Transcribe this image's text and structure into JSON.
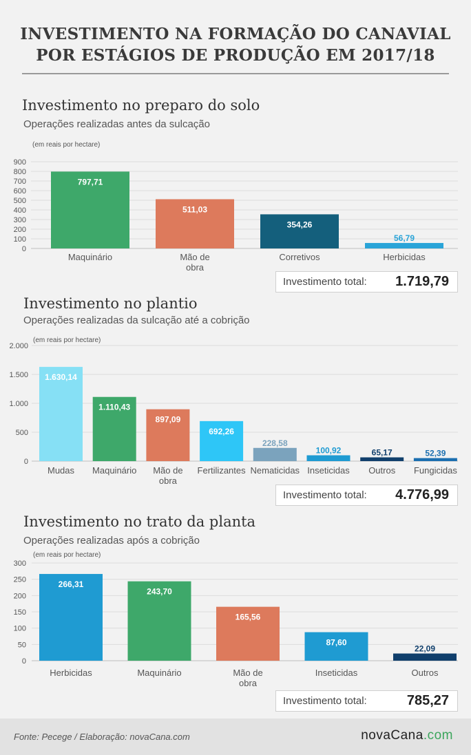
{
  "header": {
    "title_line1": "INVESTIMENTO NA FORMAÇÃO DO CANAVIAL",
    "title_line2": "POR ESTÁGIOS DE PRODUÇÃO EM 2017/18"
  },
  "total_label": "Investimento total:",
  "footer": {
    "source": "Fonte: Pecege / Elaboração: novaCana.com",
    "brand_a": "novaCana",
    "brand_b": ".com"
  },
  "sections": [
    {
      "title": "Investimento no preparo do solo",
      "subtitle": "Operações realizadas antes da sulcação",
      "unit": "(em reais por hectare)",
      "total": "1.719,79"
    },
    {
      "title": "Investimento no plantio",
      "subtitle": "Operações realizadas da sulcação até a cobrição",
      "unit": "(em reais por hectare)",
      "total": "4.776,99"
    },
    {
      "title": "Investimento no trato da planta",
      "subtitle": "Operações realizadas após a cobrição",
      "unit": "(em reais por hectare)",
      "total": "785,27"
    }
  ],
  "chart_data": [
    {
      "type": "bar",
      "title": "Investimento no preparo do solo",
      "ylabel": "(em reais por hectare)",
      "ylim": [
        0,
        900
      ],
      "yticks": [
        0,
        100,
        200,
        300,
        400,
        500,
        600,
        700,
        800,
        900
      ],
      "ytick_labels": [
        "0",
        "100",
        "200",
        "300",
        "400",
        "500",
        "600",
        "700",
        "800",
        "900"
      ],
      "categories": [
        [
          "Maquinário"
        ],
        [
          "Mão de",
          "obra"
        ],
        [
          "Corretivos"
        ],
        [
          "Herbicidas"
        ]
      ],
      "values": [
        797.71,
        511.03,
        354.26,
        56.79
      ],
      "labels": [
        "797,71",
        "511,03",
        "354,26",
        "56,79"
      ],
      "colors": [
        "#3ea86a",
        "#dd7a5c",
        "#145f7c",
        "#2aa4d8"
      ],
      "label_colors": [
        "#ffffff",
        "#ffffff",
        "#ffffff",
        "#2aa4d8"
      ],
      "grid": true
    },
    {
      "type": "bar",
      "title": "Investimento no plantio",
      "ylabel": "(em reais por hectare)",
      "ylim": [
        0,
        2000
      ],
      "yticks": [
        0,
        500,
        1000,
        1500,
        2000
      ],
      "ytick_labels": [
        "0",
        "500",
        "1.000",
        "1.500",
        "2.000"
      ],
      "categories": [
        [
          "Mudas"
        ],
        [
          "Maquinário"
        ],
        [
          "Mão de",
          "obra"
        ],
        [
          "Fertilizantes"
        ],
        [
          "Nematicidas"
        ],
        [
          "Inseticidas"
        ],
        [
          "Outros"
        ],
        [
          "Fungicidas"
        ]
      ],
      "values": [
        1630.14,
        1110.43,
        897.09,
        692.26,
        228.58,
        100.92,
        65.17,
        52.39
      ],
      "labels": [
        "1.630,14",
        "1.110,43",
        "897,09",
        "692,26",
        "228,58",
        "100,92",
        "65,17",
        "52,39"
      ],
      "colors": [
        "#86e0f5",
        "#3ea86a",
        "#dd7a5c",
        "#2ec6f7",
        "#7ba3bd",
        "#1f9bd2",
        "#103f6c",
        "#1b6fb0"
      ],
      "label_colors": [
        "#ffffff",
        "#ffffff",
        "#ffffff",
        "#ffffff",
        "#7ba3bd",
        "#1f9bd2",
        "#103f6c",
        "#1b6fb0"
      ],
      "grid": true
    },
    {
      "type": "bar",
      "title": "Investimento no trato da planta",
      "ylabel": "(em reais por hectare)",
      "ylim": [
        0,
        300
      ],
      "yticks": [
        0,
        50,
        100,
        150,
        200,
        250,
        300
      ],
      "ytick_labels": [
        "0",
        "50",
        "100",
        "150",
        "200",
        "250",
        "300"
      ],
      "categories": [
        [
          "Herbicidas"
        ],
        [
          "Maquinário"
        ],
        [
          "Mão de",
          "obra"
        ],
        [
          "Inseticidas"
        ],
        [
          "Outros"
        ]
      ],
      "values": [
        266.31,
        243.7,
        165.56,
        87.6,
        22.09
      ],
      "labels": [
        "266,31",
        "243,70",
        "165,56",
        "87,60",
        "22,09"
      ],
      "colors": [
        "#1f9bd2",
        "#3ea86a",
        "#dd7a5c",
        "#1f9bd2",
        "#103f6c"
      ],
      "label_colors": [
        "#ffffff",
        "#ffffff",
        "#ffffff",
        "#ffffff",
        "#103f6c"
      ],
      "grid": true
    }
  ]
}
